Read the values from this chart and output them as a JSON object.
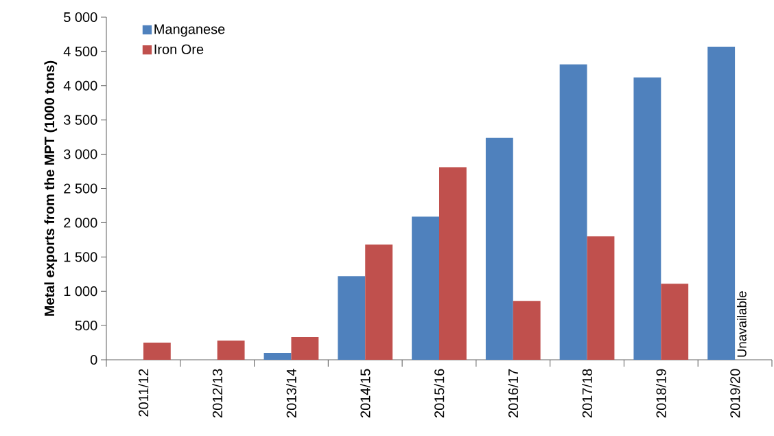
{
  "chart_data": {
    "type": "bar",
    "ylabel": "Metal exports from the MPT (1000 tons)",
    "categories": [
      "2011/12",
      "2012/13",
      "2013/14",
      "2014/15",
      "2015/16",
      "2016/17",
      "2017/18",
      "2018/19",
      "2019/20"
    ],
    "series": [
      {
        "name": "Manganese",
        "color": "#4f81bd",
        "values": [
          null,
          null,
          100,
          1220,
          2090,
          3240,
          4310,
          4120,
          4570
        ]
      },
      {
        "name": "Iron Ore",
        "color": "#c0504d",
        "values": [
          250,
          280,
          330,
          1680,
          2810,
          860,
          1800,
          1110,
          null
        ]
      }
    ],
    "ylim": [
      0,
      5000
    ],
    "yticks": [
      0,
      500,
      {
        "value": 1000,
        "label": "1 000"
      },
      {
        "value": 1500,
        "label": "1 500"
      },
      {
        "value": 2000,
        "label": "2 000"
      },
      {
        "value": 2500,
        "label": "2 500"
      },
      {
        "value": 3000,
        "label": "3 000"
      },
      {
        "value": 3500,
        "label": "3 500"
      },
      {
        "value": 4000,
        "label": "4 000"
      },
      {
        "value": 4500,
        "label": "4 500"
      },
      {
        "value": 5000,
        "label": "5 000"
      }
    ],
    "annotations": [
      {
        "text": "Unavailable",
        "x": "2019/20",
        "y": 0
      }
    ],
    "legend": "top left",
    "grid": false
  }
}
